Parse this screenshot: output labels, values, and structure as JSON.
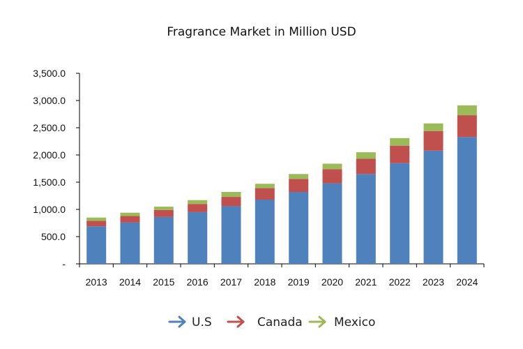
{
  "chart_data": {
    "type": "bar",
    "stacked": true,
    "title": "Fragrance Market in Million USD",
    "xlabel": "",
    "ylabel": "",
    "categories": [
      "2013",
      "2014",
      "2015",
      "2016",
      "2017",
      "2018",
      "2019",
      "2020",
      "2021",
      "2022",
      "2023",
      "2024"
    ],
    "series": [
      {
        "name": "U.S",
        "color": "#4f81bd",
        "values": [
          690,
          760,
          860,
          950,
          1060,
          1180,
          1320,
          1480,
          1650,
          1850,
          2080,
          2330
        ]
      },
      {
        "name": "Canada",
        "color": "#c0504d",
        "values": [
          100,
          120,
          130,
          150,
          170,
          210,
          240,
          260,
          280,
          320,
          360,
          400
        ]
      },
      {
        "name": "Mexico",
        "color": "#9bbb59",
        "values": [
          60,
          60,
          60,
          70,
          90,
          80,
          90,
          100,
          120,
          140,
          140,
          180
        ]
      }
    ],
    "ylim": [
      0,
      3500
    ],
    "yticks": [
      0,
      500,
      1000,
      1500,
      2000,
      2500,
      3000,
      3500
    ],
    "ytick_labels": [
      "-",
      "500.0",
      "1,000.0",
      "1,500.0",
      "2,000.0",
      "2,500.0",
      "3,000.0",
      "3,500.0"
    ],
    "grid": false,
    "legend_position": "bottom"
  }
}
